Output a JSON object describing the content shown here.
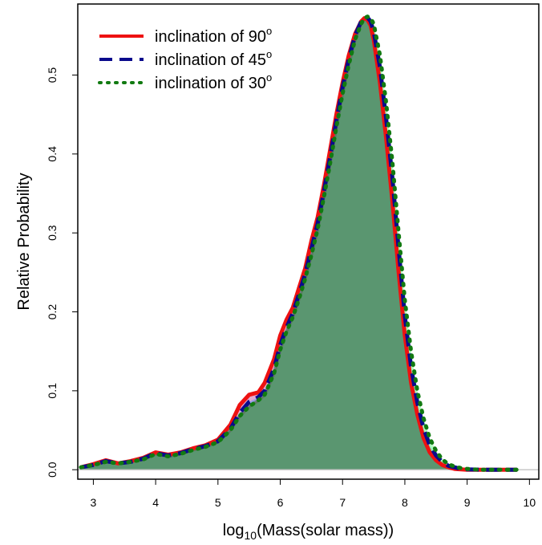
{
  "chart_data": {
    "type": "area",
    "xlabel": "Mass(solar mass))",
    "xlabel_prefix": "log",
    "xlabel_subscript": "10",
    "xlabel_open": "(",
    "ylabel": "Relative Probability",
    "xlim": [
      2.75,
      10.15
    ],
    "ylim": [
      -0.012,
      0.59
    ],
    "x_ticks": [
      3,
      4,
      5,
      6,
      7,
      8,
      9,
      10
    ],
    "y_ticks": [
      0.0,
      0.1,
      0.2,
      0.3,
      0.4,
      0.5
    ],
    "x_tick_labels": [
      "3",
      "4",
      "5",
      "6",
      "7",
      "8",
      "9",
      "10"
    ],
    "y_tick_labels": [
      "0.0",
      "0.1",
      "0.2",
      "0.3",
      "0.4",
      "0.5"
    ],
    "legend_position": "top-left",
    "grid": false,
    "series": [
      {
        "name": "inclination of 90",
        "name_superscript": "o",
        "line_color": "#ee1111",
        "fill_color": "#cc66aa",
        "line_style": "solid",
        "x": [
          2.8,
          3.0,
          3.2,
          3.4,
          3.6,
          3.8,
          4.0,
          4.2,
          4.4,
          4.6,
          4.8,
          5.0,
          5.2,
          5.35,
          5.5,
          5.65,
          5.75,
          5.9,
          6.0,
          6.1,
          6.2,
          6.3,
          6.4,
          6.5,
          6.6,
          6.7,
          6.8,
          6.9,
          7.0,
          7.1,
          7.2,
          7.3,
          7.35,
          7.4,
          7.45,
          7.5,
          7.6,
          7.7,
          7.8,
          7.9,
          8.0,
          8.1,
          8.2,
          8.3,
          8.4,
          8.5,
          8.6,
          8.7,
          8.8,
          8.9,
          9.0,
          9.2,
          9.5,
          9.8
        ],
        "y": [
          0.003,
          0.007,
          0.012,
          0.008,
          0.011,
          0.015,
          0.022,
          0.019,
          0.022,
          0.027,
          0.031,
          0.038,
          0.057,
          0.082,
          0.095,
          0.098,
          0.11,
          0.14,
          0.17,
          0.19,
          0.205,
          0.23,
          0.255,
          0.29,
          0.32,
          0.36,
          0.405,
          0.45,
          0.49,
          0.525,
          0.552,
          0.568,
          0.572,
          0.57,
          0.563,
          0.545,
          0.49,
          0.42,
          0.34,
          0.25,
          0.17,
          0.11,
          0.07,
          0.04,
          0.022,
          0.012,
          0.006,
          0.003,
          0.001,
          0.0005,
          0.0,
          0.0,
          0.0,
          0.0
        ]
      },
      {
        "name": "inclination of 45",
        "name_superscript": "o",
        "line_color": "#0a0a8c",
        "fill_color": "#6699ff",
        "line_style": "dashed",
        "x": [
          2.8,
          3.0,
          3.2,
          3.4,
          3.6,
          3.8,
          4.0,
          4.2,
          4.4,
          4.6,
          4.8,
          5.0,
          5.2,
          5.35,
          5.5,
          5.65,
          5.75,
          5.9,
          6.0,
          6.1,
          6.2,
          6.3,
          6.4,
          6.5,
          6.6,
          6.7,
          6.8,
          6.9,
          7.0,
          7.1,
          7.2,
          7.3,
          7.35,
          7.4,
          7.45,
          7.5,
          7.6,
          7.7,
          7.8,
          7.9,
          8.0,
          8.1,
          8.2,
          8.3,
          8.4,
          8.5,
          8.6,
          8.7,
          8.8,
          8.9,
          9.0,
          9.2,
          9.5,
          9.8
        ],
        "y": [
          0.003,
          0.006,
          0.011,
          0.008,
          0.01,
          0.014,
          0.021,
          0.018,
          0.021,
          0.026,
          0.03,
          0.036,
          0.052,
          0.072,
          0.086,
          0.092,
          0.1,
          0.128,
          0.158,
          0.18,
          0.198,
          0.222,
          0.248,
          0.28,
          0.312,
          0.352,
          0.396,
          0.442,
          0.484,
          0.52,
          0.55,
          0.568,
          0.573,
          0.573,
          0.568,
          0.555,
          0.51,
          0.445,
          0.37,
          0.28,
          0.195,
          0.13,
          0.085,
          0.052,
          0.031,
          0.018,
          0.01,
          0.005,
          0.003,
          0.001,
          0.0005,
          0.0,
          0.0,
          0.0
        ]
      },
      {
        "name": "inclination of 30",
        "name_superscript": "o",
        "line_color": "#117a11",
        "fill_color": "#77ff88",
        "line_style": "dotted",
        "x": [
          2.8,
          3.0,
          3.2,
          3.4,
          3.6,
          3.8,
          4.0,
          4.2,
          4.4,
          4.6,
          4.8,
          5.0,
          5.2,
          5.35,
          5.5,
          5.65,
          5.75,
          5.9,
          6.0,
          6.1,
          6.2,
          6.3,
          6.4,
          6.5,
          6.6,
          6.7,
          6.8,
          6.9,
          7.0,
          7.1,
          7.2,
          7.3,
          7.35,
          7.4,
          7.45,
          7.5,
          7.6,
          7.7,
          7.8,
          7.9,
          8.0,
          8.1,
          8.2,
          8.3,
          8.4,
          8.5,
          8.6,
          8.7,
          8.8,
          8.9,
          9.0,
          9.2,
          9.5,
          9.8
        ],
        "y": [
          0.003,
          0.006,
          0.01,
          0.008,
          0.01,
          0.013,
          0.02,
          0.017,
          0.02,
          0.025,
          0.029,
          0.035,
          0.05,
          0.068,
          0.08,
          0.088,
          0.095,
          0.122,
          0.152,
          0.175,
          0.193,
          0.216,
          0.242,
          0.272,
          0.305,
          0.345,
          0.388,
          0.434,
          0.476,
          0.513,
          0.545,
          0.565,
          0.572,
          0.574,
          0.572,
          0.565,
          0.525,
          0.465,
          0.39,
          0.3,
          0.215,
          0.15,
          0.1,
          0.065,
          0.04,
          0.024,
          0.013,
          0.007,
          0.004,
          0.002,
          0.001,
          0.0,
          0.0,
          0.0
        ]
      }
    ]
  }
}
